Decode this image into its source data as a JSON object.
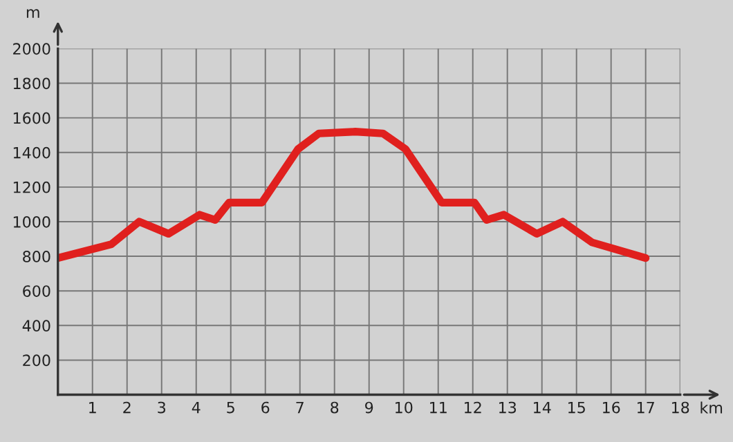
{
  "chart_data": {
    "type": "line",
    "xlabel": "km",
    "ylabel": "m",
    "x": [
      0,
      1.55,
      2.35,
      3.2,
      4.1,
      4.55,
      4.95,
      5.9,
      6.95,
      7.55,
      8.6,
      9.4,
      10.05,
      11.1,
      12.05,
      12.4,
      12.9,
      13.85,
      14.6,
      15.45,
      17.0
    ],
    "series": [
      {
        "color": "#e0201e",
        "values": [
          790,
          870,
          1000,
          930,
          1040,
          1010,
          1110,
          1110,
          1420,
          1510,
          1520,
          1510,
          1420,
          1110,
          1110,
          1010,
          1040,
          930,
          1000,
          880,
          790
        ]
      }
    ],
    "xlim": [
      0,
      18
    ],
    "ylim": [
      0,
      2000
    ],
    "xticks": [
      1,
      2,
      3,
      4,
      5,
      6,
      7,
      8,
      9,
      10,
      11,
      12,
      13,
      14,
      15,
      16,
      17,
      18
    ],
    "yticks": [
      200,
      400,
      600,
      800,
      1000,
      1200,
      1400,
      1600,
      1800,
      2000
    ],
    "grid": true,
    "legend": false,
    "marker": "none",
    "line_style": "solid"
  }
}
